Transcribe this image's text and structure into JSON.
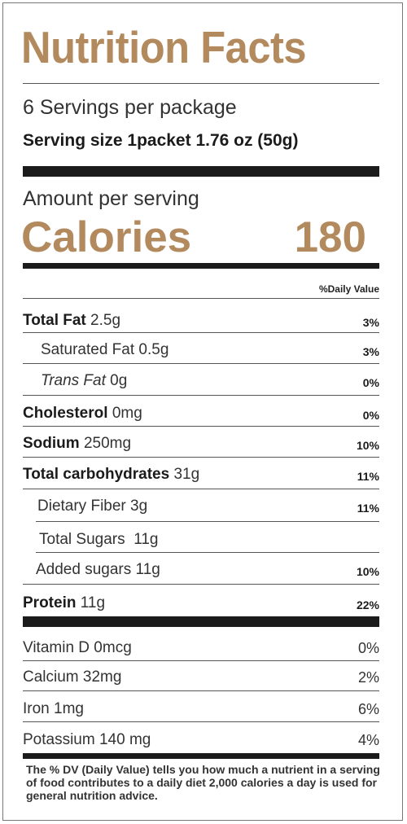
{
  "title": "Nutrition Facts",
  "servings": "6 Servings per package",
  "serving_size": "Serving size 1packet 1.76 oz (50g)",
  "amount_label": "Amount per serving",
  "calories": {
    "label": "Calories",
    "value": "180"
  },
  "dv_header": "%Daily Value",
  "nutrients": [
    {
      "name": "Total Fat",
      "amount": "2.5g",
      "dv": "3%"
    },
    {
      "name": "Saturated Fat",
      "amount": "0.5g",
      "dv": "3%"
    },
    {
      "name": "Trans Fat",
      "amount": "0g",
      "dv": "0%"
    },
    {
      "name": "Cholesterol",
      "amount": "0mg",
      "dv": "0%"
    },
    {
      "name": "Sodium",
      "amount": "250mg",
      "dv": "10%"
    },
    {
      "name": "Total carbohydrates",
      "amount": "31g",
      "dv": "11%"
    },
    {
      "name": "Dietary Fiber",
      "amount": "3g",
      "dv": "11%"
    },
    {
      "name": "Total Sugars",
      "amount": "11g",
      "dv": ""
    },
    {
      "name": "Added sugars",
      "amount": "11g",
      "dv": "10%"
    },
    {
      "name": "Protein",
      "amount": "11g",
      "dv": "22%"
    }
  ],
  "vitamins": [
    {
      "name": "Vitamin D",
      "amount": "0mcg",
      "dv": "0%"
    },
    {
      "name": "Calcium",
      "amount": "32mg",
      "dv": "2%"
    },
    {
      "name": "Iron",
      "amount": "1mg",
      "dv": "6%"
    },
    {
      "name": "Potassium",
      "amount": "140 mg",
      "dv": "4%"
    }
  ],
  "footnote": "The % DV (Daily Value) tells you how much a nutrient in a serving of food contributes  to a  daily diet 2,000 calories a day is used for general   nutrition advice.",
  "colors": {
    "accent": "#b28a5e",
    "bars": "#1b1b1b"
  }
}
